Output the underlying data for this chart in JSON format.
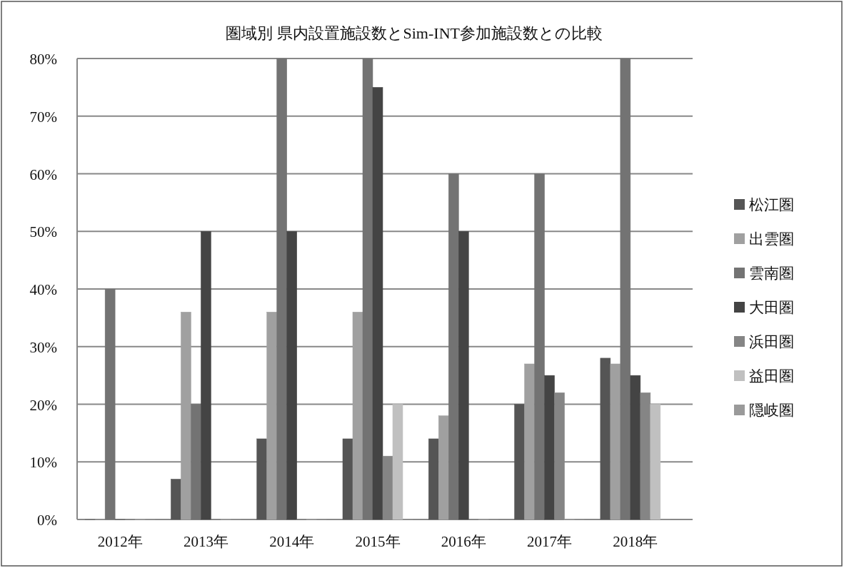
{
  "chart_data": {
    "type": "bar",
    "title": "圏域別 県内設置施設数とSim-INT参加施設数との比較",
    "categories": [
      "2012年",
      "2013年",
      "2014年",
      "2015年",
      "2016年",
      "2017年",
      "2018年"
    ],
    "series": [
      {
        "name": "松江圏",
        "color": "#555555",
        "values": [
          0,
          7,
          14,
          14,
          14,
          20,
          28
        ]
      },
      {
        "name": "出雲圏",
        "color": "#a0a0a0",
        "values": [
          0,
          36,
          36,
          36,
          18,
          27,
          27
        ]
      },
      {
        "name": "雲南圏",
        "color": "#737373",
        "values": [
          40,
          20,
          80,
          80,
          60,
          60,
          80
        ]
      },
      {
        "name": "大田圏",
        "color": "#444444",
        "values": [
          0,
          50,
          50,
          75,
          50,
          25,
          25
        ]
      },
      {
        "name": "浜田圏",
        "color": "#858585",
        "values": [
          0,
          0,
          0,
          11,
          0,
          22,
          22
        ]
      },
      {
        "name": "益田圏",
        "color": "#c0c0c0",
        "values": [
          0,
          0,
          0,
          20,
          0,
          0,
          20
        ]
      },
      {
        "name": "隠岐圏",
        "color": "#9a9a9a",
        "values": [
          0,
          0,
          0,
          0,
          0,
          0,
          0
        ]
      }
    ],
    "ylim": [
      0,
      80
    ],
    "yticks": [
      {
        "value": 0,
        "label": "0%"
      },
      {
        "value": 10,
        "label": "10%"
      },
      {
        "value": 20,
        "label": "20%"
      },
      {
        "value": 30,
        "label": "30%"
      },
      {
        "value": 40,
        "label": "40%"
      },
      {
        "value": 50,
        "label": "50%"
      },
      {
        "value": 60,
        "label": "60%"
      },
      {
        "value": 70,
        "label": "70%"
      },
      {
        "value": 80,
        "label": "80%"
      }
    ],
    "grid": "y",
    "legend": "right"
  }
}
